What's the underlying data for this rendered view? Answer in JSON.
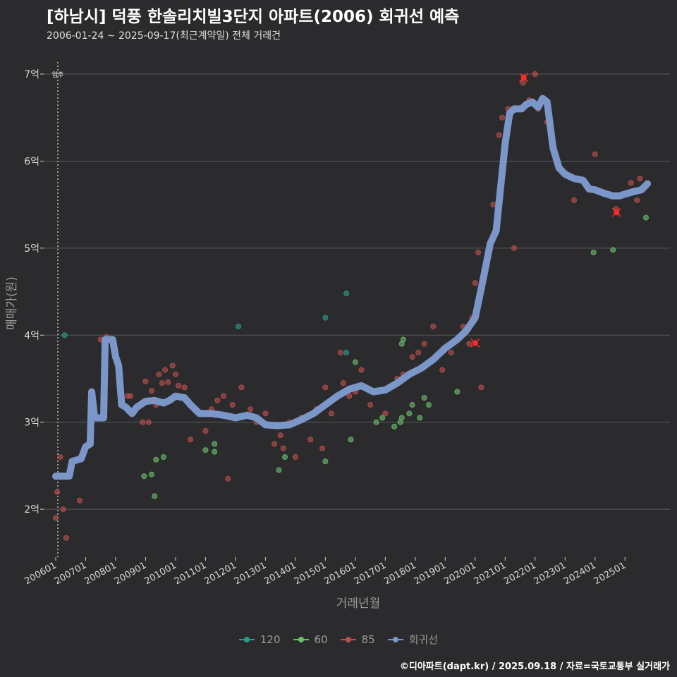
{
  "title": "[하남시] 덕풍 한솔리치빌3단지 아파트(2006) 회귀선 예측",
  "subtitle": "2006-01-24 ~ 2025-09-17(최근계약일) 전체 거래건",
  "caption": "©디아파트(dapt.kr) / 2025.09.18 / 자료=국토교통부 실거래가",
  "colors": {
    "background": "#2b2b2d",
    "grid": "#5a5a5c",
    "s120": "#2a9d8f",
    "s60": "#6cc06c",
    "s85": "#c0504d",
    "regression": "#7b96c8",
    "highlight": "#ff2a2a"
  },
  "chart_data": {
    "type": "scatter",
    "xlabel": "거래년월",
    "ylabel": "매매가(원)",
    "ylim": [
      1.45,
      7.3
    ],
    "xlim": [
      2005.6,
      2026.5
    ],
    "y_ticks": [
      {
        "value": 2,
        "label": "2억"
      },
      {
        "value": 3,
        "label": "3억"
      },
      {
        "value": 4,
        "label": "4억"
      },
      {
        "value": 5,
        "label": "5억"
      },
      {
        "value": 6,
        "label": "6억"
      },
      {
        "value": 7,
        "label": "7억"
      }
    ],
    "x_ticks": [
      {
        "value": 2006.0,
        "label": "200601"
      },
      {
        "value": 2007.0,
        "label": "200701"
      },
      {
        "value": 2008.0,
        "label": "200801"
      },
      {
        "value": 2009.0,
        "label": "200901"
      },
      {
        "value": 2010.0,
        "label": "201001"
      },
      {
        "value": 2011.0,
        "label": "201101"
      },
      {
        "value": 2012.0,
        "label": "201201"
      },
      {
        "value": 2013.0,
        "label": "201301"
      },
      {
        "value": 2014.0,
        "label": "201401"
      },
      {
        "value": 2015.0,
        "label": "201501"
      },
      {
        "value": 2016.0,
        "label": "201601"
      },
      {
        "value": 2017.0,
        "label": "201701"
      },
      {
        "value": 2018.0,
        "label": "201801"
      },
      {
        "value": 2019.0,
        "label": "201901"
      },
      {
        "value": 2020.0,
        "label": "202001"
      },
      {
        "value": 2021.0,
        "label": "202101"
      },
      {
        "value": 2022.0,
        "label": "202201"
      },
      {
        "value": 2023.0,
        "label": "202301"
      },
      {
        "value": 2024.0,
        "label": "202401"
      },
      {
        "value": 2025.0,
        "label": "202501"
      }
    ],
    "vline": {
      "x": 2006.07,
      "label": "입주"
    },
    "legend_position": "bottom",
    "series": [
      {
        "name": "120",
        "points": [
          [
            2006.3,
            4.0
          ],
          [
            2012.1,
            4.1
          ],
          [
            2015.0,
            4.2
          ],
          [
            2015.7,
            4.48
          ],
          [
            2015.7,
            3.8
          ]
        ]
      },
      {
        "name": "60",
        "points": [
          [
            2008.95,
            2.38
          ],
          [
            2009.2,
            2.4
          ],
          [
            2009.3,
            2.15
          ],
          [
            2009.35,
            2.57
          ],
          [
            2009.6,
            2.6
          ],
          [
            2011.0,
            2.68
          ],
          [
            2011.3,
            2.75
          ],
          [
            2011.3,
            2.66
          ],
          [
            2013.45,
            2.45
          ],
          [
            2013.65,
            2.6
          ],
          [
            2015.0,
            2.55
          ],
          [
            2015.85,
            2.8
          ],
          [
            2016.0,
            3.69
          ],
          [
            2016.7,
            3.0
          ],
          [
            2016.9,
            3.05
          ],
          [
            2017.3,
            2.95
          ],
          [
            2017.5,
            3.0
          ],
          [
            2017.55,
            3.05
          ],
          [
            2017.55,
            3.9
          ],
          [
            2017.6,
            3.95
          ],
          [
            2017.8,
            3.1
          ],
          [
            2017.9,
            3.2
          ],
          [
            2018.15,
            3.05
          ],
          [
            2018.3,
            3.28
          ],
          [
            2018.45,
            3.2
          ],
          [
            2019.4,
            3.35
          ],
          [
            2023.95,
            4.95
          ],
          [
            2024.6,
            4.98
          ],
          [
            2025.7,
            5.35
          ]
        ]
      },
      {
        "name": "85",
        "points": [
          [
            2006.0,
            1.9
          ],
          [
            2006.05,
            2.2
          ],
          [
            2006.15,
            2.6
          ],
          [
            2006.25,
            2.0
          ],
          [
            2006.35,
            1.67
          ],
          [
            2006.8,
            2.1
          ],
          [
            2007.5,
            3.95
          ],
          [
            2007.7,
            3.98
          ],
          [
            2008.4,
            3.3
          ],
          [
            2008.5,
            3.3
          ],
          [
            2008.9,
            3.0
          ],
          [
            2009.0,
            3.47
          ],
          [
            2009.1,
            3.0
          ],
          [
            2009.2,
            3.36
          ],
          [
            2009.35,
            3.2
          ],
          [
            2009.45,
            3.55
          ],
          [
            2009.55,
            3.45
          ],
          [
            2009.65,
            3.6
          ],
          [
            2009.75,
            3.46
          ],
          [
            2009.9,
            3.65
          ],
          [
            2010.0,
            3.55
          ],
          [
            2010.1,
            3.42
          ],
          [
            2010.3,
            3.4
          ],
          [
            2010.5,
            2.8
          ],
          [
            2010.8,
            3.1
          ],
          [
            2011.0,
            2.9
          ],
          [
            2011.2,
            3.15
          ],
          [
            2011.4,
            3.25
          ],
          [
            2011.6,
            3.3
          ],
          [
            2011.75,
            2.35
          ],
          [
            2011.9,
            3.2
          ],
          [
            2012.2,
            3.4
          ],
          [
            2012.5,
            3.15
          ],
          [
            2012.7,
            3.0
          ],
          [
            2013.0,
            3.1
          ],
          [
            2013.3,
            2.75
          ],
          [
            2013.5,
            2.85
          ],
          [
            2013.6,
            2.7
          ],
          [
            2013.8,
            3.0
          ],
          [
            2014.0,
            2.6
          ],
          [
            2014.2,
            3.05
          ],
          [
            2014.5,
            2.8
          ],
          [
            2014.7,
            3.15
          ],
          [
            2014.9,
            2.7
          ],
          [
            2015.0,
            3.4
          ],
          [
            2015.2,
            3.1
          ],
          [
            2015.5,
            3.8
          ],
          [
            2015.6,
            3.45
          ],
          [
            2015.8,
            3.3
          ],
          [
            2016.0,
            3.35
          ],
          [
            2016.2,
            3.6
          ],
          [
            2016.5,
            3.2
          ],
          [
            2016.8,
            3.35
          ],
          [
            2017.0,
            3.1
          ],
          [
            2017.2,
            3.4
          ],
          [
            2017.4,
            3.5
          ],
          [
            2017.6,
            3.55
          ],
          [
            2017.9,
            3.75
          ],
          [
            2018.1,
            3.8
          ],
          [
            2018.3,
            3.9
          ],
          [
            2018.6,
            4.1
          ],
          [
            2018.9,
            3.6
          ],
          [
            2019.2,
            3.8
          ],
          [
            2019.4,
            3.95
          ],
          [
            2019.6,
            4.1
          ],
          [
            2019.8,
            3.9
          ],
          [
            2019.9,
            4.2
          ],
          [
            2020.0,
            4.6
          ],
          [
            2020.1,
            4.95
          ],
          [
            2020.2,
            3.4
          ],
          [
            2020.5,
            5.0
          ],
          [
            2020.6,
            5.5
          ],
          [
            2020.8,
            6.3
          ],
          [
            2020.9,
            6.5
          ],
          [
            2021.1,
            6.6
          ],
          [
            2021.3,
            5.0
          ],
          [
            2021.6,
            6.9
          ],
          [
            2021.8,
            6.7
          ],
          [
            2022.0,
            7.0
          ],
          [
            2022.1,
            6.6
          ],
          [
            2022.4,
            6.45
          ],
          [
            2022.6,
            6.2
          ],
          [
            2022.8,
            5.95
          ],
          [
            2023.3,
            5.55
          ],
          [
            2023.8,
            5.7
          ],
          [
            2024.0,
            6.08
          ],
          [
            2024.5,
            5.6
          ],
          [
            2024.7,
            5.45
          ],
          [
            2025.2,
            5.75
          ],
          [
            2025.4,
            5.55
          ],
          [
            2025.5,
            5.8
          ]
        ]
      },
      {
        "name": "회귀선",
        "points": [
          [
            2006.0,
            2.38
          ],
          [
            2006.45,
            2.38
          ],
          [
            2006.55,
            2.55
          ],
          [
            2006.85,
            2.58
          ],
          [
            2007.0,
            2.72
          ],
          [
            2007.15,
            2.75
          ],
          [
            2007.2,
            3.35
          ],
          [
            2007.3,
            3.05
          ],
          [
            2007.6,
            3.05
          ],
          [
            2007.65,
            3.95
          ],
          [
            2007.9,
            3.95
          ],
          [
            2008.0,
            3.75
          ],
          [
            2008.1,
            3.65
          ],
          [
            2008.2,
            3.2
          ],
          [
            2008.35,
            3.17
          ],
          [
            2008.55,
            3.1
          ],
          [
            2008.7,
            3.17
          ],
          [
            2009.0,
            3.24
          ],
          [
            2009.3,
            3.25
          ],
          [
            2009.6,
            3.22
          ],
          [
            2009.8,
            3.25
          ],
          [
            2010.0,
            3.3
          ],
          [
            2010.3,
            3.28
          ],
          [
            2010.5,
            3.2
          ],
          [
            2010.8,
            3.1
          ],
          [
            2011.2,
            3.1
          ],
          [
            2011.6,
            3.08
          ],
          [
            2012.0,
            3.05
          ],
          [
            2012.4,
            3.08
          ],
          [
            2012.7,
            3.05
          ],
          [
            2013.0,
            2.97
          ],
          [
            2013.4,
            2.96
          ],
          [
            2013.8,
            2.97
          ],
          [
            2014.2,
            3.03
          ],
          [
            2014.6,
            3.1
          ],
          [
            2015.0,
            3.2
          ],
          [
            2015.4,
            3.3
          ],
          [
            2015.8,
            3.38
          ],
          [
            2016.2,
            3.42
          ],
          [
            2016.6,
            3.35
          ],
          [
            2017.0,
            3.37
          ],
          [
            2017.4,
            3.45
          ],
          [
            2017.8,
            3.55
          ],
          [
            2018.2,
            3.62
          ],
          [
            2018.6,
            3.72
          ],
          [
            2019.0,
            3.85
          ],
          [
            2019.4,
            3.95
          ],
          [
            2019.7,
            4.05
          ],
          [
            2020.0,
            4.2
          ],
          [
            2020.3,
            4.7
          ],
          [
            2020.5,
            5.05
          ],
          [
            2020.7,
            5.2
          ],
          [
            2020.85,
            5.7
          ],
          [
            2021.0,
            6.2
          ],
          [
            2021.15,
            6.55
          ],
          [
            2021.3,
            6.6
          ],
          [
            2021.55,
            6.6
          ],
          [
            2021.7,
            6.65
          ],
          [
            2021.9,
            6.68
          ],
          [
            2022.1,
            6.62
          ],
          [
            2022.25,
            6.72
          ],
          [
            2022.4,
            6.68
          ],
          [
            2022.6,
            6.15
          ],
          [
            2022.8,
            5.92
          ],
          [
            2023.0,
            5.85
          ],
          [
            2023.3,
            5.8
          ],
          [
            2023.6,
            5.78
          ],
          [
            2023.8,
            5.68
          ],
          [
            2024.0,
            5.67
          ],
          [
            2024.3,
            5.63
          ],
          [
            2024.6,
            5.6
          ],
          [
            2024.8,
            5.6
          ],
          [
            2025.0,
            5.62
          ],
          [
            2025.3,
            5.65
          ],
          [
            2025.55,
            5.67
          ],
          [
            2025.75,
            5.74
          ]
        ]
      }
    ],
    "highlights": [
      [
        2021.62,
        6.96
      ],
      [
        2024.72,
        5.41
      ],
      [
        2020.0,
        3.91
      ]
    ]
  }
}
